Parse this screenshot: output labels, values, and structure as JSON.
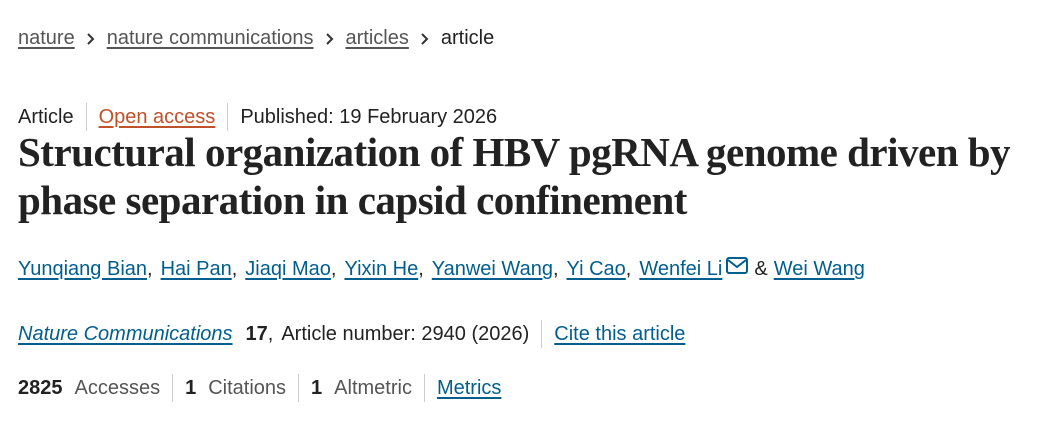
{
  "breadcrumbs": [
    "nature",
    "nature communications",
    "articles",
    "article"
  ],
  "meta": {
    "type": "Article",
    "access": "Open access",
    "published": "Published: 19 February 2026"
  },
  "title": "Structural organization of HBV pgRNA genome driven by phase separation in capsid confinement",
  "authors": [
    "Yunqiang Bian",
    "Hai Pan",
    "Jiaqi Mao",
    "Yixin He",
    "Yanwei Wang",
    "Yi Cao",
    "Wenfei Li",
    "Wei Wang"
  ],
  "separator": ",",
  "conjunction": "&",
  "citation": {
    "journal": "Nature Communications",
    "volume": 17,
    "article_info": "Article number: 2940 (2026)",
    "cite_link": "Cite this article"
  },
  "metrics": [
    {
      "count": 2825,
      "label": "Accesses"
    },
    {
      "count": 1,
      "label": "Citations"
    },
    {
      "count": 1,
      "label": "Altmetric"
    }
  ],
  "metrics_link": "Metrics"
}
